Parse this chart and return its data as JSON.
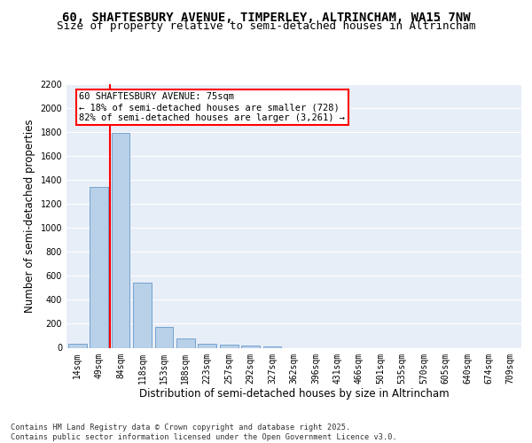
{
  "title1": "60, SHAFTESBURY AVENUE, TIMPERLEY, ALTRINCHAM, WA15 7NW",
  "title2": "Size of property relative to semi-detached houses in Altrincham",
  "xlabel": "Distribution of semi-detached houses by size in Altrincham",
  "ylabel": "Number of semi-detached properties",
  "categories": [
    "14sqm",
    "49sqm",
    "84sqm",
    "118sqm",
    "153sqm",
    "188sqm",
    "223sqm",
    "257sqm",
    "292sqm",
    "327sqm",
    "362sqm",
    "396sqm",
    "431sqm",
    "466sqm",
    "501sqm",
    "535sqm",
    "570sqm",
    "605sqm",
    "640sqm",
    "674sqm",
    "709sqm"
  ],
  "values": [
    30,
    1340,
    1790,
    540,
    175,
    80,
    35,
    28,
    20,
    10,
    0,
    0,
    0,
    0,
    0,
    0,
    0,
    0,
    0,
    0,
    0
  ],
  "bar_color": "#b8d0e8",
  "bar_edge_color": "#6699cc",
  "annotation_text": "60 SHAFTESBURY AVENUE: 75sqm\n← 18% of semi-detached houses are smaller (728)\n82% of semi-detached houses are larger (3,261) →",
  "ylim": [
    0,
    2200
  ],
  "yticks": [
    0,
    200,
    400,
    600,
    800,
    1000,
    1200,
    1400,
    1600,
    1800,
    2000,
    2200
  ],
  "bg_color": "#e8eef8",
  "grid_color": "#ffffff",
  "footer": "Contains HM Land Registry data © Crown copyright and database right 2025.\nContains public sector information licensed under the Open Government Licence v3.0.",
  "title_fontsize": 10,
  "subtitle_fontsize": 9,
  "tick_fontsize": 7,
  "label_fontsize": 8.5
}
